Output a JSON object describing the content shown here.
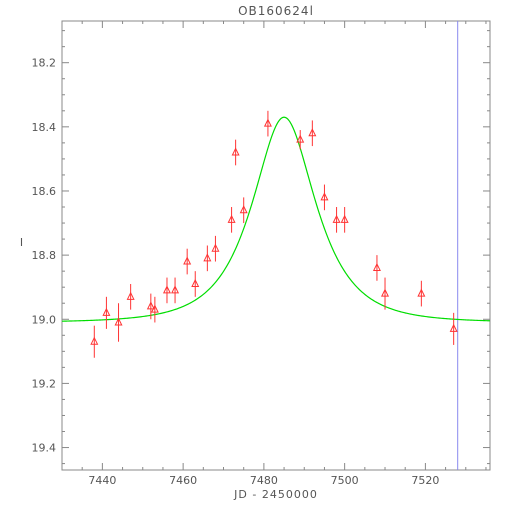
{
  "chart_data": {
    "type": "scatter",
    "title": "OB160624l",
    "xlabel": "JD - 2450000",
    "ylabel": "I",
    "xlim": [
      7430,
      7536
    ],
    "ylim": [
      18.07,
      19.47
    ],
    "y_inverted": true,
    "x_ticks": [
      7440,
      7460,
      7480,
      7500,
      7520
    ],
    "y_ticks": [
      18.2,
      18.4,
      18.6,
      18.8,
      19.0,
      19.2,
      19.4
    ],
    "x_tick_labels": [
      "7440",
      "7460",
      "7480",
      "7500",
      "7520"
    ],
    "y_tick_labels": [
      "18.2",
      "18.4",
      "18.6",
      "18.8",
      "19.0",
      "19.2",
      "19.4"
    ],
    "grid": false,
    "colors": {
      "points": "#ff3333",
      "model": "#00dd00",
      "marker_line": "#8888ee",
      "axes": "#888888"
    },
    "series": [
      {
        "type": "scatter",
        "marker": "triangle",
        "x": [
          7438,
          7441,
          7444,
          7447,
          7452,
          7453,
          7456,
          7458,
          7461,
          7463,
          7466,
          7468,
          7472,
          7473,
          7475,
          7481,
          7489,
          7492,
          7495,
          7498,
          7500,
          7508,
          7510,
          7519,
          7527
        ],
        "y": [
          19.07,
          18.98,
          19.01,
          18.93,
          18.96,
          18.97,
          18.91,
          18.91,
          18.82,
          18.89,
          18.81,
          18.78,
          18.69,
          18.48,
          18.66,
          18.39,
          18.44,
          18.42,
          18.62,
          18.69,
          18.69,
          18.84,
          18.92,
          18.92,
          19.03
        ],
        "yerr": [
          0.05,
          0.05,
          0.06,
          0.04,
          0.04,
          0.04,
          0.04,
          0.04,
          0.04,
          0.04,
          0.04,
          0.04,
          0.04,
          0.04,
          0.04,
          0.04,
          0.03,
          0.04,
          0.04,
          0.04,
          0.04,
          0.04,
          0.05,
          0.04,
          0.05
        ]
      },
      {
        "type": "line",
        "model": {
          "t0": 7485,
          "baseline": 19.01,
          "peak": 18.37,
          "tE": 12
        }
      }
    ],
    "vertical_marker_x": 7528
  }
}
